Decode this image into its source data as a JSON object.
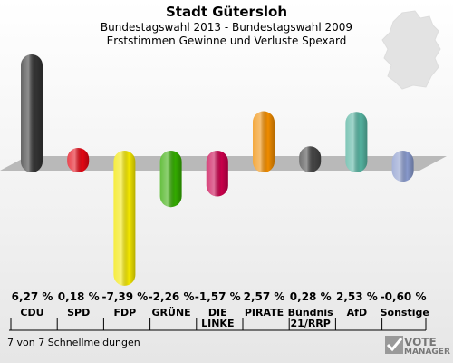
{
  "header": {
    "title": "Stadt Gütersloh",
    "subtitle": "Bundestagswahl 2013 - Bundestagswahl 2009",
    "subtitle2": "Erststimmen Gewinne und Verluste Spexard"
  },
  "footer": {
    "text": "7 von 7 Schnellmeldungen"
  },
  "logo": {
    "line1": "VOTE",
    "line2": "MANAGER"
  },
  "chart_data": {
    "type": "bar",
    "categories": [
      "CDU",
      "SPD",
      "FDP",
      "GRÜNE",
      "DIE LINKE",
      "PIRATE",
      "Bündnis 21/RRP",
      "AfD",
      "Sonstige"
    ],
    "value_labels": [
      "6,27 %",
      "0,18 %",
      "-7,39 %",
      "-2,26 %",
      "-1,57 %",
      "2,57 %",
      "0,28 %",
      "2,53 %",
      "-0,60 %"
    ],
    "values": [
      6.27,
      0.18,
      -7.39,
      -2.26,
      -1.57,
      2.57,
      0.28,
      2.53,
      -0.6
    ],
    "colors": [
      "#333333",
      "#e30613",
      "#f2e600",
      "#33aa00",
      "#c8004b",
      "#f08c00",
      "#444444",
      "#55b3a0",
      "#8899cc"
    ],
    "ylim": [
      -7.39,
      6.27
    ]
  }
}
